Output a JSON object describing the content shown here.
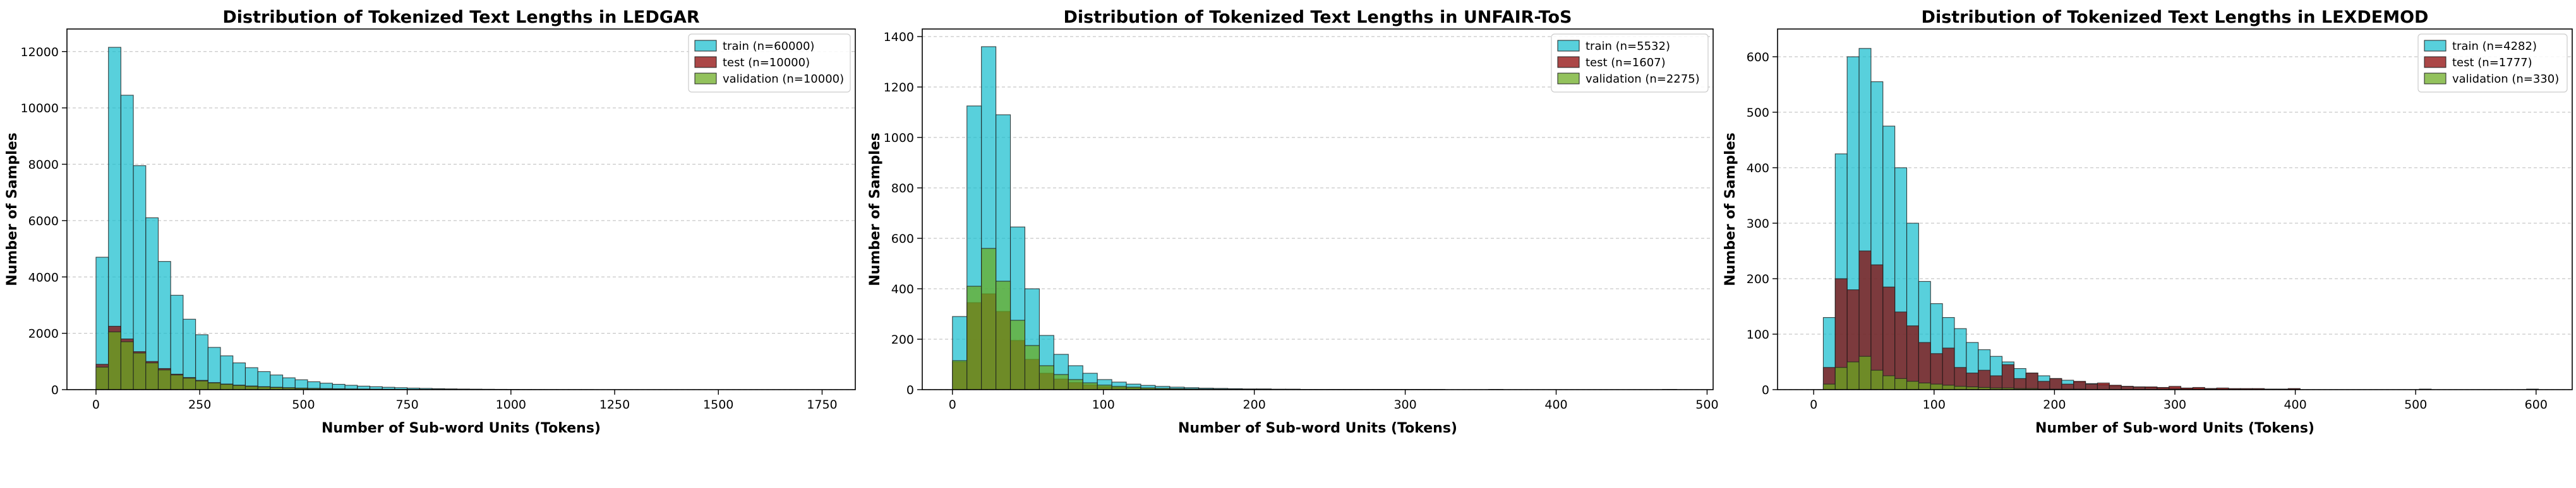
{
  "colors": {
    "train": "#17becf",
    "test": "#8b0000",
    "validation": "#6aaa1e",
    "edge": "#222222",
    "grid": "#b0b0b0"
  },
  "chart_data": [
    {
      "type": "bar",
      "title": "Distribution of Tokenized Text Lengths in LEDGAR",
      "xlabel": "Number of Sub-word Units (Tokens)",
      "ylabel": "Number of Samples",
      "xlim": [
        -70,
        1830
      ],
      "ylim": [
        0,
        12800
      ],
      "xticks": [
        0,
        250,
        500,
        750,
        1000,
        1250,
        1500,
        1750
      ],
      "yticks": [
        0,
        2000,
        4000,
        6000,
        8000,
        10000,
        12000
      ],
      "grid": "y",
      "legend_position": "top-right",
      "bin_start": 0,
      "bin_width": 30,
      "series": [
        {
          "name": "train (n=60000)",
          "key": "train",
          "values": [
            4700,
            12150,
            10450,
            7950,
            6100,
            4550,
            3350,
            2500,
            1950,
            1500,
            1200,
            950,
            780,
            640,
            520,
            420,
            350,
            280,
            230,
            190,
            155,
            125,
            105,
            85,
            70,
            55,
            45,
            35,
            28,
            22,
            18,
            14,
            11,
            9,
            7,
            5,
            4,
            3,
            2,
            2
          ]
        },
        {
          "name": "test (n=10000)",
          "key": "test",
          "values": [
            900,
            2250,
            1800,
            1350,
            1000,
            750,
            550,
            430,
            330,
            250,
            200,
            160,
            130,
            105,
            85,
            70,
            55,
            45,
            38,
            30,
            25,
            20,
            16,
            13,
            10,
            8,
            6,
            5,
            4,
            3,
            2,
            2
          ]
        },
        {
          "name": "validation (n=10000)",
          "key": "validation",
          "values": [
            800,
            2050,
            1700,
            1300,
            950,
            700,
            520,
            410,
            310,
            240,
            190,
            150,
            120,
            100,
            80,
            65,
            50,
            40,
            33,
            27,
            22,
            18,
            14,
            11,
            9,
            7,
            5,
            4,
            3,
            2,
            2
          ]
        }
      ]
    },
    {
      "type": "bar",
      "title": "Distribution of Tokenized Text Lengths in UNFAIR-ToS",
      "xlabel": "Number of Sub-word Units (Tokens)",
      "ylabel": "Number of Samples",
      "xlim": [
        -20,
        504
      ],
      "ylim": [
        0,
        1430
      ],
      "xticks": [
        0,
        100,
        200,
        300,
        400,
        500
      ],
      "yticks": [
        0,
        200,
        400,
        600,
        800,
        1000,
        1200,
        1400
      ],
      "grid": "y",
      "legend_position": "top-right",
      "bin_start": 0,
      "bin_width": 9.6,
      "series": [
        {
          "name": "train (n=5532)",
          "key": "train",
          "values": [
            290,
            1125,
            1360,
            1090,
            645,
            400,
            215,
            140,
            95,
            65,
            40,
            30,
            22,
            17,
            13,
            10,
            8,
            6,
            5,
            4,
            3,
            3,
            2,
            2,
            1,
            1,
            1,
            1,
            1,
            1,
            1,
            1,
            1,
            1,
            0,
            0,
            0,
            1,
            0,
            0,
            0,
            0,
            0,
            0,
            0,
            0,
            0,
            0,
            0,
            1
          ]
        },
        {
          "name": "test (n=1607)",
          "key": "test",
          "values": [
            110,
            345,
            380,
            310,
            195,
            120,
            65,
            42,
            28,
            19,
            12,
            9,
            7,
            5,
            4,
            3,
            2,
            2,
            1,
            1,
            1,
            1
          ]
        },
        {
          "name": "validation (n=2275)",
          "key": "validation",
          "values": [
            115,
            410,
            560,
            430,
            275,
            175,
            95,
            60,
            40,
            27,
            18,
            13,
            10,
            7,
            5,
            4,
            3,
            2,
            2,
            1,
            1,
            1
          ]
        }
      ]
    },
    {
      "type": "bar",
      "title": "Distribution of Tokenized Text Lengths in LEXDEMOD",
      "xlabel": "Number of Sub-word Units (Tokens)",
      "ylabel": "Number of Samples",
      "xlim": [
        -30,
        630
      ],
      "ylim": [
        0,
        650
      ],
      "xticks": [
        0,
        100,
        200,
        300,
        400,
        500,
        600
      ],
      "yticks": [
        0,
        100,
        200,
        300,
        400,
        500,
        600
      ],
      "grid": "y",
      "legend_position": "top-right",
      "bin_start": 8,
      "bin_width": 9.9,
      "series": [
        {
          "name": "train (n=4282)",
          "key": "train",
          "values": [
            130,
            425,
            600,
            615,
            555,
            475,
            400,
            300,
            195,
            155,
            130,
            110,
            85,
            72,
            60,
            50,
            38,
            30,
            25,
            20,
            17,
            14,
            11,
            9,
            7,
            6,
            5,
            4,
            3,
            3,
            2,
            2,
            2,
            1,
            1,
            1,
            1,
            1,
            1,
            1,
            0,
            0,
            0,
            0,
            0,
            0,
            0,
            0,
            0,
            0,
            1,
            0,
            0,
            0,
            0,
            0,
            0,
            0,
            0,
            1
          ]
        },
        {
          "name": "test (n=1777)",
          "key": "test",
          "values": [
            40,
            200,
            180,
            250,
            225,
            185,
            140,
            115,
            85,
            65,
            75,
            40,
            30,
            35,
            25,
            45,
            20,
            30,
            15,
            20,
            10,
            15,
            10,
            12,
            8,
            6,
            5,
            5,
            4,
            6,
            3,
            4,
            2,
            3,
            2,
            2,
            2,
            1,
            1,
            2
          ]
        },
        {
          "name": "validation (n=330)",
          "key": "validation",
          "values": [
            10,
            40,
            50,
            60,
            35,
            25,
            20,
            15,
            12,
            10,
            8,
            6,
            5,
            4,
            3,
            3,
            2,
            2,
            1,
            1,
            1,
            1
          ]
        }
      ]
    }
  ]
}
